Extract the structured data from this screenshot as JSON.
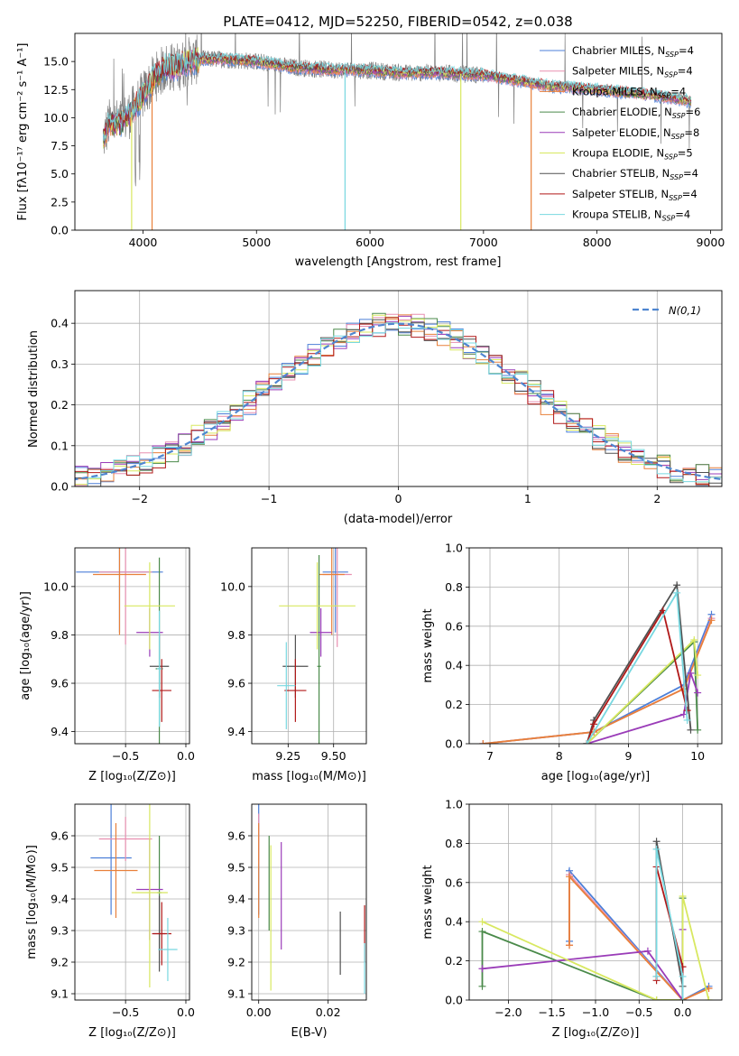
{
  "title": "PLATE=0412, MJD=52250, FIBERID=0542, z=0.038",
  "colors": {
    "chabrier_miles": "#4c7fd8",
    "salpeter_miles": "#e88fb0",
    "kroupa_miles": "#e8803a",
    "chabrier_elodie": "#4a8a4a",
    "salpeter_elodie": "#9a3cb8",
    "kroupa_elodie": "#d8e860",
    "chabrier_stelib": "#505050",
    "salpeter_stelib": "#b01818",
    "kroupa_stelib": "#78d8e0",
    "data": "#808080"
  },
  "chart_data": [
    {
      "id": "spectrum",
      "type": "line",
      "xlabel": "wavelength [Angstrom, rest frame]",
      "ylabel": "Flux [fλ10⁻¹⁷ erg cm⁻² s⁻¹ A⁻¹]",
      "xlim": [
        3400,
        9100
      ],
      "ylim": [
        0,
        17.5
      ],
      "xticks": [
        "4000",
        "5000",
        "6000",
        "7000",
        "8000",
        "9000"
      ],
      "yticks": [
        "0.0",
        "2.5",
        "5.0",
        "7.5",
        "10.0",
        "12.5",
        "15.0"
      ],
      "grid": false,
      "legend_position": "top-right",
      "continuum": {
        "x": [
          3650,
          3700,
          3800,
          3900,
          4000,
          4100,
          4200,
          4300,
          4400,
          4500,
          4700,
          5000,
          5300,
          5600,
          6000,
          6300,
          6600,
          7000,
          7300,
          7600,
          7900,
          8200,
          8500,
          8800
        ],
        "y": [
          8.0,
          9.5,
          9.5,
          10.5,
          12.0,
          13.5,
          14.5,
          14.5,
          15.0,
          15.2,
          15.2,
          15.0,
          14.5,
          14.3,
          14.2,
          14.0,
          14.0,
          13.8,
          13.3,
          12.8,
          12.6,
          12.3,
          12.0,
          11.5
        ]
      },
      "series": [
        {
          "name": "Chabrier MILES, N_SSP=4",
          "key": "chabrier_miles"
        },
        {
          "name": "Salpeter MILES, N_SSP=4",
          "key": "salpeter_miles"
        },
        {
          "name": "Kroupa MILES, N_SSP=4",
          "key": "kroupa_miles"
        },
        {
          "name": "Chabrier ELODIE, N_SSP=6",
          "key": "chabrier_elodie"
        },
        {
          "name": "Salpeter ELODIE, N_SSP=8",
          "key": "salpeter_elodie"
        },
        {
          "name": "Kroupa ELODIE, N_SSP=5",
          "key": "kroupa_elodie"
        },
        {
          "name": "Chabrier STELIB, N_SSP=4",
          "key": "chabrier_stelib"
        },
        {
          "name": "Salpeter STELIB, N_SSP=4",
          "key": "salpeter_stelib"
        },
        {
          "name": "Kroupa STELIB, N_SSP=4",
          "key": "kroupa_stelib"
        }
      ]
    },
    {
      "id": "residuals",
      "type": "line",
      "xlabel": "(data-model)/error",
      "ylabel": "Normed distribution",
      "xlim": [
        -2.5,
        2.5
      ],
      "ylim": [
        0,
        0.48
      ],
      "xticks": [
        "−2",
        "−1",
        "0",
        "1",
        "2"
      ],
      "yticks": [
        "0.0",
        "0.1",
        "0.2",
        "0.3",
        "0.4"
      ],
      "grid": true,
      "legend_position": "top-right",
      "legend": "N(0,1)"
    },
    {
      "id": "age_vs_Z",
      "type": "scatter",
      "xlabel": "Z [log₁₀(Z/Z⊙)]",
      "ylabel": "age  [log₁₀(age/yr)]",
      "xlim": [
        -0.92,
        0.03
      ],
      "ylim": [
        9.35,
        10.16
      ],
      "xticks": [
        "−0.5",
        "0.0"
      ],
      "yticks": [
        "9.4",
        "9.6",
        "9.8",
        "10.0"
      ],
      "grid": true,
      "points": [
        {
          "key": "chabrier_miles",
          "x": -0.55,
          "y": 10.06,
          "xerr": 0.36,
          "yerr": 0.25
        },
        {
          "key": "salpeter_miles",
          "x": -0.5,
          "y": 10.06,
          "xerr": 0.22,
          "yerr": 0.3
        },
        {
          "key": "kroupa_miles",
          "x": -0.55,
          "y": 10.05,
          "xerr": 0.22,
          "yerr": 0.25
        },
        {
          "key": "chabrier_elodie",
          "x": -0.22,
          "y": 9.66,
          "xerr": 0.03,
          "yerr": 0.46
        },
        {
          "key": "salpeter_elodie",
          "x": -0.3,
          "y": 9.81,
          "xerr": 0.11,
          "yerr": 0.1
        },
        {
          "key": "kroupa_elodie",
          "x": -0.3,
          "y": 9.92,
          "xerr": 0.21,
          "yerr": 0.18
        },
        {
          "key": "chabrier_stelib",
          "x": -0.22,
          "y": 9.67,
          "xerr": 0.08,
          "yerr": 0.13
        },
        {
          "key": "salpeter_stelib",
          "x": -0.2,
          "y": 9.57,
          "xerr": 0.08,
          "yerr": 0.13
        },
        {
          "key": "kroupa_stelib",
          "x": -0.22,
          "y": 9.66,
          "xerr": 0.02,
          "yerr": 0.24
        }
      ]
    },
    {
      "id": "age_vs_mass",
      "type": "scatter",
      "xlabel": "mass [log₁₀(M/M⊙)]",
      "ylabel": "",
      "xlim": [
        9.05,
        9.68
      ],
      "ylim": [
        9.35,
        10.16
      ],
      "xticks": [
        "9.25",
        "9.50"
      ],
      "yticks": [
        "9.4",
        "9.6",
        "9.8",
        "10.0"
      ],
      "grid": true,
      "points": [
        {
          "key": "chabrier_miles",
          "x": 9.51,
          "y": 10.06,
          "xerr": 0.07,
          "yerr": 0.25
        },
        {
          "key": "salpeter_miles",
          "x": 9.52,
          "y": 10.05,
          "xerr": 0.08,
          "yerr": 0.3
        },
        {
          "key": "kroupa_miles",
          "x": 9.49,
          "y": 10.05,
          "xerr": 0.07,
          "yerr": 0.25
        },
        {
          "key": "chabrier_elodie",
          "x": 9.42,
          "y": 9.67,
          "xerr": 0.01,
          "yerr": 0.46
        },
        {
          "key": "salpeter_elodie",
          "x": 9.43,
          "y": 9.81,
          "xerr": 0.06,
          "yerr": 0.1
        },
        {
          "key": "kroupa_elodie",
          "x": 9.41,
          "y": 9.92,
          "xerr": 0.21,
          "yerr": 0.18
        },
        {
          "key": "chabrier_stelib",
          "x": 9.29,
          "y": 9.67,
          "xerr": 0.07,
          "yerr": 0.13
        },
        {
          "key": "salpeter_stelib",
          "x": 9.29,
          "y": 9.57,
          "xerr": 0.06,
          "yerr": 0.13
        },
        {
          "key": "kroupa_stelib",
          "x": 9.24,
          "y": 9.59,
          "xerr": 0.05,
          "yerr": 0.18
        }
      ]
    },
    {
      "id": "weight_vs_age",
      "type": "line",
      "xlabel": "age  [log₁₀(age/yr)]",
      "ylabel": "mass weight",
      "xlim": [
        6.7,
        10.35
      ],
      "ylim": [
        0,
        1.0
      ],
      "xticks": [
        "7",
        "8",
        "9",
        "10"
      ],
      "yticks": [
        "0.0",
        "0.2",
        "0.4",
        "0.6",
        "0.8",
        "1.0"
      ],
      "grid": true,
      "series": [
        {
          "key": "chabrier_miles",
          "x": [
            6.9,
            8.5,
            9.8,
            10.2
          ],
          "y": [
            0.0,
            0.06,
            0.3,
            0.66
          ]
        },
        {
          "key": "salpeter_miles",
          "x": [
            6.9,
            8.5,
            9.8,
            10.2
          ],
          "y": [
            0.0,
            0.06,
            0.28,
            0.64
          ]
        },
        {
          "key": "kroupa_miles",
          "x": [
            6.9,
            8.5,
            9.8,
            10.2
          ],
          "y": [
            0.0,
            0.06,
            0.28,
            0.63
          ]
        },
        {
          "key": "chabrier_elodie",
          "x": [
            8.4,
            9.95,
            10.0
          ],
          "y": [
            0.0,
            0.52,
            0.07
          ]
        },
        {
          "key": "salpeter_elodie",
          "x": [
            8.4,
            9.8,
            9.9,
            10.0
          ],
          "y": [
            0.0,
            0.15,
            0.36,
            0.26
          ]
        },
        {
          "key": "kroupa_elodie",
          "x": [
            8.4,
            9.95,
            10.0
          ],
          "y": [
            0.0,
            0.53,
            0.35
          ]
        },
        {
          "key": "chabrier_stelib",
          "x": [
            8.4,
            8.5,
            9.7,
            9.9
          ],
          "y": [
            0.0,
            0.12,
            0.81,
            0.07
          ]
        },
        {
          "key": "salpeter_stelib",
          "x": [
            8.4,
            8.5,
            9.5,
            9.85
          ],
          "y": [
            0.0,
            0.1,
            0.68,
            0.17
          ]
        },
        {
          "key": "kroupa_stelib",
          "x": [
            8.4,
            9.7,
            9.85
          ],
          "y": [
            0.0,
            0.77,
            0.12
          ]
        }
      ]
    },
    {
      "id": "mass_vs_Z",
      "type": "scatter",
      "xlabel": "Z [log₁₀(Z/Z⊙)]",
      "ylabel": "mass [log₁₀(M/M⊙)]",
      "xlim": [
        -0.92,
        0.03
      ],
      "ylim": [
        9.08,
        9.7
      ],
      "xticks": [
        "−0.5",
        "0.0"
      ],
      "yticks": [
        "9.1",
        "9.2",
        "9.3",
        "9.4",
        "9.5",
        "9.6"
      ],
      "grid": true,
      "points": [
        {
          "key": "chabrier_miles",
          "x": -0.62,
          "y": 9.53,
          "xerr": 0.17,
          "yerr": 0.18
        },
        {
          "key": "salpeter_miles",
          "x": -0.5,
          "y": 9.59,
          "xerr": 0.22,
          "yerr": 0.07
        },
        {
          "key": "kroupa_miles",
          "x": -0.58,
          "y": 9.49,
          "xerr": 0.18,
          "yerr": 0.15
        },
        {
          "key": "chabrier_elodie",
          "x": -0.22,
          "y": 9.42,
          "xerr": 0.02,
          "yerr": 0.18
        },
        {
          "key": "salpeter_elodie",
          "x": -0.3,
          "y": 9.43,
          "xerr": 0.11,
          "yerr": 0.16
        },
        {
          "key": "kroupa_elodie",
          "x": -0.3,
          "y": 9.42,
          "xerr": 0.15,
          "yerr": 0.3
        },
        {
          "key": "chabrier_stelib",
          "x": -0.22,
          "y": 9.29,
          "xerr": 0.05,
          "yerr": 0.12
        },
        {
          "key": "salpeter_stelib",
          "x": -0.2,
          "y": 9.29,
          "xerr": 0.08,
          "yerr": 0.1
        },
        {
          "key": "kroupa_stelib",
          "x": -0.15,
          "y": 9.24,
          "xerr": 0.08,
          "yerr": 0.1
        }
      ]
    },
    {
      "id": "mass_vs_EBV",
      "type": "scatter",
      "xlabel": "E(B-V)",
      "ylabel": "",
      "xlim": [
        -0.002,
        0.031
      ],
      "ylim": [
        9.08,
        9.7
      ],
      "xticks": [
        "0.00",
        "0.02"
      ],
      "yticks": [
        "9.1",
        "9.2",
        "9.3",
        "9.4",
        "9.5",
        "9.6"
      ],
      "grid": true,
      "points": [
        {
          "key": "chabrier_miles",
          "x": 0.0,
          "y": 9.53,
          "xerr": 0.0,
          "yerr": 0.18
        },
        {
          "key": "salpeter_miles",
          "x": 0.0,
          "y": 9.59,
          "xerr": 0.0,
          "yerr": 0.08
        },
        {
          "key": "kroupa_miles",
          "x": 0.0,
          "y": 9.49,
          "xerr": 0.0,
          "yerr": 0.15
        },
        {
          "key": "chabrier_elodie",
          "x": 0.003,
          "y": 9.45,
          "xerr": 0.0,
          "yerr": 0.15
        },
        {
          "key": "salpeter_elodie",
          "x": 0.0065,
          "y": 9.41,
          "xerr": 0.0,
          "yerr": 0.17
        },
        {
          "key": "kroupa_elodie",
          "x": 0.0035,
          "y": 9.34,
          "xerr": 0.0,
          "yerr": 0.23
        },
        {
          "key": "chabrier_stelib",
          "x": 0.0235,
          "y": 9.26,
          "xerr": 0.0,
          "yerr": 0.1
        },
        {
          "key": "salpeter_stelib",
          "x": 0.0305,
          "y": 9.29,
          "xerr": 0.0,
          "yerr": 0.09
        },
        {
          "key": "kroupa_stelib",
          "x": 0.0305,
          "y": 9.18,
          "xerr": 0.0,
          "yerr": 0.08
        }
      ]
    },
    {
      "id": "weight_vs_Z",
      "type": "line",
      "xlabel": "Z [log₁₀(Z/Z⊙)]",
      "ylabel": "mass weight",
      "xlim": [
        -2.45,
        0.45
      ],
      "ylim": [
        0,
        1.0
      ],
      "xticks": [
        "−2.0",
        "−1.5",
        "−1.0",
        "−0.5",
        "0.0"
      ],
      "yticks": [
        "0.0",
        "0.2",
        "0.4",
        "0.6",
        "0.8",
        "1.0"
      ],
      "grid": true,
      "series": [
        {
          "key": "chabrier_miles",
          "x": [
            -1.3,
            -1.3,
            0.0,
            0.3
          ],
          "y": [
            0.3,
            0.66,
            0.0,
            0.07
          ]
        },
        {
          "key": "salpeter_miles",
          "x": [
            -1.3,
            -1.3,
            0.0,
            0.3
          ],
          "y": [
            0.28,
            0.64,
            0.0,
            0.06
          ]
        },
        {
          "key": "kroupa_miles",
          "x": [
            -1.3,
            -1.3,
            0.0,
            0.3
          ],
          "y": [
            0.28,
            0.63,
            0.0,
            0.06
          ]
        },
        {
          "key": "chabrier_elodie",
          "x": [
            -2.3,
            -2.3,
            -0.3,
            0.0,
            0.0
          ],
          "y": [
            0.07,
            0.35,
            0.0,
            0.0,
            0.52
          ]
        },
        {
          "key": "salpeter_elodie",
          "x": [
            -2.3,
            -0.4,
            0.0,
            0.0
          ],
          "y": [
            0.16,
            0.25,
            0.0,
            0.36
          ]
        },
        {
          "key": "kroupa_elodie",
          "x": [
            -2.3,
            -0.3,
            0.0,
            0.0,
            0.3
          ],
          "y": [
            0.4,
            0.0,
            0.0,
            0.53,
            0.0
          ]
        },
        {
          "key": "chabrier_stelib",
          "x": [
            -0.3,
            -0.3,
            0.0,
            0.0
          ],
          "y": [
            0.12,
            0.81,
            0.07,
            0.0
          ]
        },
        {
          "key": "salpeter_stelib",
          "x": [
            -0.3,
            -0.3,
            0.0,
            0.0
          ],
          "y": [
            0.1,
            0.68,
            0.17,
            0.0
          ]
        },
        {
          "key": "kroupa_stelib",
          "x": [
            -0.3,
            -0.3,
            0.0,
            0.0
          ],
          "y": [
            0.12,
            0.77,
            0.12,
            0.0
          ]
        }
      ]
    }
  ]
}
